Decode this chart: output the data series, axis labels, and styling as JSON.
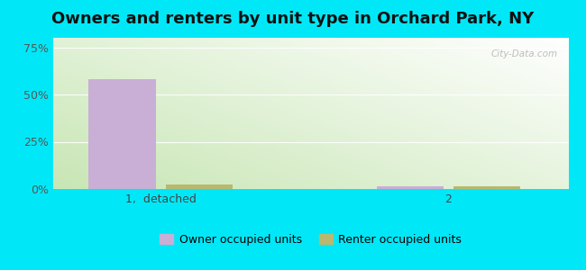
{
  "title": "Owners and renters by unit type in Orchard Park, NY",
  "categories": [
    "1,  detached",
    "2"
  ],
  "owner_values": [
    58.0,
    1.5
  ],
  "renter_values": [
    2.5,
    1.2
  ],
  "owner_color": "#c9aed6",
  "renter_color": "#b8b870",
  "yticks": [
    0,
    25,
    50,
    75
  ],
  "ytick_labels": [
    "0%",
    "25%",
    "50%",
    "75%"
  ],
  "ylim": [
    0,
    80
  ],
  "outer_bg": "#00e8f8",
  "title_fontsize": 13,
  "legend_owner": "Owner occupied units",
  "legend_renter": "Renter occupied units",
  "bar_width": 0.28,
  "watermark": "City-Data.com",
  "grid_color": "#e0e8d8",
  "x_positions": [
    0.4,
    1.6
  ],
  "xlim": [
    -0.05,
    2.1
  ]
}
